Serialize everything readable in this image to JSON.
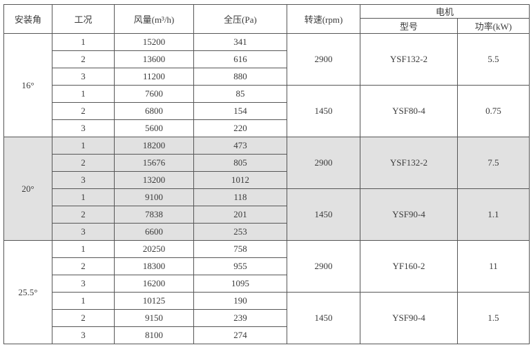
{
  "headers": {
    "angle": "安装角",
    "condition": "工况",
    "airflow": "风量(m³/h)",
    "pressure": "全压(Pa)",
    "speed": "转速(rpm)",
    "motor": "电机",
    "model": "型号",
    "power": "功率(kW)"
  },
  "groups": [
    {
      "angle": "16°",
      "shaded": false,
      "subgroups": [
        {
          "speed": "2900",
          "model": "YSF132-2",
          "power": "5.5",
          "rows": [
            {
              "condition": "1",
              "airflow": "15200",
              "pressure": "341"
            },
            {
              "condition": "2",
              "airflow": "13600",
              "pressure": "616"
            },
            {
              "condition": "3",
              "airflow": "11200",
              "pressure": "880"
            }
          ]
        },
        {
          "speed": "1450",
          "model": "YSF80-4",
          "power": "0.75",
          "rows": [
            {
              "condition": "1",
              "airflow": "7600",
              "pressure": "85"
            },
            {
              "condition": "2",
              "airflow": "6800",
              "pressure": "154"
            },
            {
              "condition": "3",
              "airflow": "5600",
              "pressure": "220"
            }
          ]
        }
      ]
    },
    {
      "angle": "20°",
      "shaded": true,
      "subgroups": [
        {
          "speed": "2900",
          "model": "YSF132-2",
          "power": "7.5",
          "rows": [
            {
              "condition": "1",
              "airflow": "18200",
              "pressure": "473"
            },
            {
              "condition": "2",
              "airflow": "15676",
              "pressure": "805"
            },
            {
              "condition": "3",
              "airflow": "13200",
              "pressure": "1012"
            }
          ]
        },
        {
          "speed": "1450",
          "model": "YSF90-4",
          "power": "1.1",
          "rows": [
            {
              "condition": "1",
              "airflow": "9100",
              "pressure": "118"
            },
            {
              "condition": "2",
              "airflow": "7838",
              "pressure": "201"
            },
            {
              "condition": "3",
              "airflow": "6600",
              "pressure": "253"
            }
          ]
        }
      ]
    },
    {
      "angle": "25.5°",
      "shaded": false,
      "subgroups": [
        {
          "speed": "2900",
          "model": "YF160-2",
          "power": "11",
          "rows": [
            {
              "condition": "1",
              "airflow": "20250",
              "pressure": "758"
            },
            {
              "condition": "2",
              "airflow": "18300",
              "pressure": "955"
            },
            {
              "condition": "3",
              "airflow": "16200",
              "pressure": "1095"
            }
          ]
        },
        {
          "speed": "1450",
          "model": "YSF90-4",
          "power": "1.5",
          "rows": [
            {
              "condition": "1",
              "airflow": "10125",
              "pressure": "190"
            },
            {
              "condition": "2",
              "airflow": "9150",
              "pressure": "239"
            },
            {
              "condition": "3",
              "airflow": "8100",
              "pressure": "274"
            }
          ]
        }
      ]
    }
  ]
}
